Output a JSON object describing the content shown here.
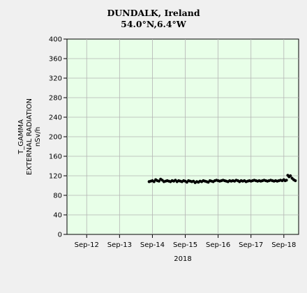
{
  "chart_data": {
    "type": "scatter",
    "title": "DUNDALK, Ireland",
    "subtitle": "54.0°N,6.4°W",
    "xlabel": "2018",
    "ylabel_lines": [
      "T_GAMMA",
      "EXTERNAL RADIATION",
      "nSv/h"
    ],
    "x_categories": [
      "Sep-12",
      "Sep-13",
      "Sep-14",
      "Sep-15",
      "Sep-16",
      "Sep-17",
      "Sep-18"
    ],
    "xlim": [
      11.4,
      18.45
    ],
    "ylim": [
      0,
      400
    ],
    "yticks": [
      0,
      40,
      80,
      120,
      160,
      200,
      240,
      280,
      320,
      360,
      400
    ],
    "grid": true,
    "colors": {
      "plot_background": "#e8ffe8",
      "page_background": "#f0f0f0",
      "points": "#000000",
      "grid": "#b4b4b4"
    },
    "series": [
      {
        "x": [
          13.9,
          13.95,
          14.0,
          14.05,
          14.1,
          14.15,
          14.2,
          14.25,
          14.3,
          14.35,
          14.4,
          14.45,
          14.5,
          14.55,
          14.6,
          14.65,
          14.7,
          14.75,
          14.8,
          14.85,
          14.9,
          14.95,
          15.0,
          15.05,
          15.1,
          15.15,
          15.2,
          15.25,
          15.3,
          15.35,
          15.4,
          15.45,
          15.5,
          15.55,
          15.6,
          15.65,
          15.7,
          15.75,
          15.8,
          15.85,
          15.9,
          15.95,
          16.0,
          16.05,
          16.1,
          16.15,
          16.2,
          16.25,
          16.3,
          16.35,
          16.4,
          16.45,
          16.5,
          16.55,
          16.6,
          16.65,
          16.7,
          16.75,
          16.8,
          16.85,
          16.9,
          16.95,
          17.0,
          17.05,
          17.1,
          17.15,
          17.2,
          17.25,
          17.3,
          17.35,
          17.4,
          17.45,
          17.5,
          17.55,
          17.6,
          17.65,
          17.7,
          17.75,
          17.8,
          17.85,
          17.9,
          17.95,
          18.0,
          18.04,
          18.08,
          18.12,
          18.16,
          18.2,
          18.25,
          18.3,
          18.35
        ],
        "y": [
          108,
          109,
          110,
          108,
          112,
          110,
          109,
          113,
          111,
          108,
          109,
          110,
          109,
          108,
          110,
          109,
          111,
          108,
          110,
          109,
          108,
          110,
          109,
          107,
          110,
          109,
          108,
          109,
          106,
          108,
          107,
          109,
          108,
          110,
          109,
          108,
          107,
          110,
          109,
          108,
          110,
          111,
          110,
          109,
          110,
          111,
          110,
          109,
          108,
          110,
          109,
          110,
          109,
          111,
          110,
          108,
          110,
          109,
          110,
          108,
          109,
          110,
          109,
          110,
          111,
          110,
          109,
          110,
          109,
          110,
          111,
          110,
          109,
          110,
          111,
          110,
          109,
          110,
          109,
          110,
          111,
          110,
          112,
          110,
          111,
          121,
          118,
          120,
          115,
          112,
          110
        ]
      }
    ]
  }
}
